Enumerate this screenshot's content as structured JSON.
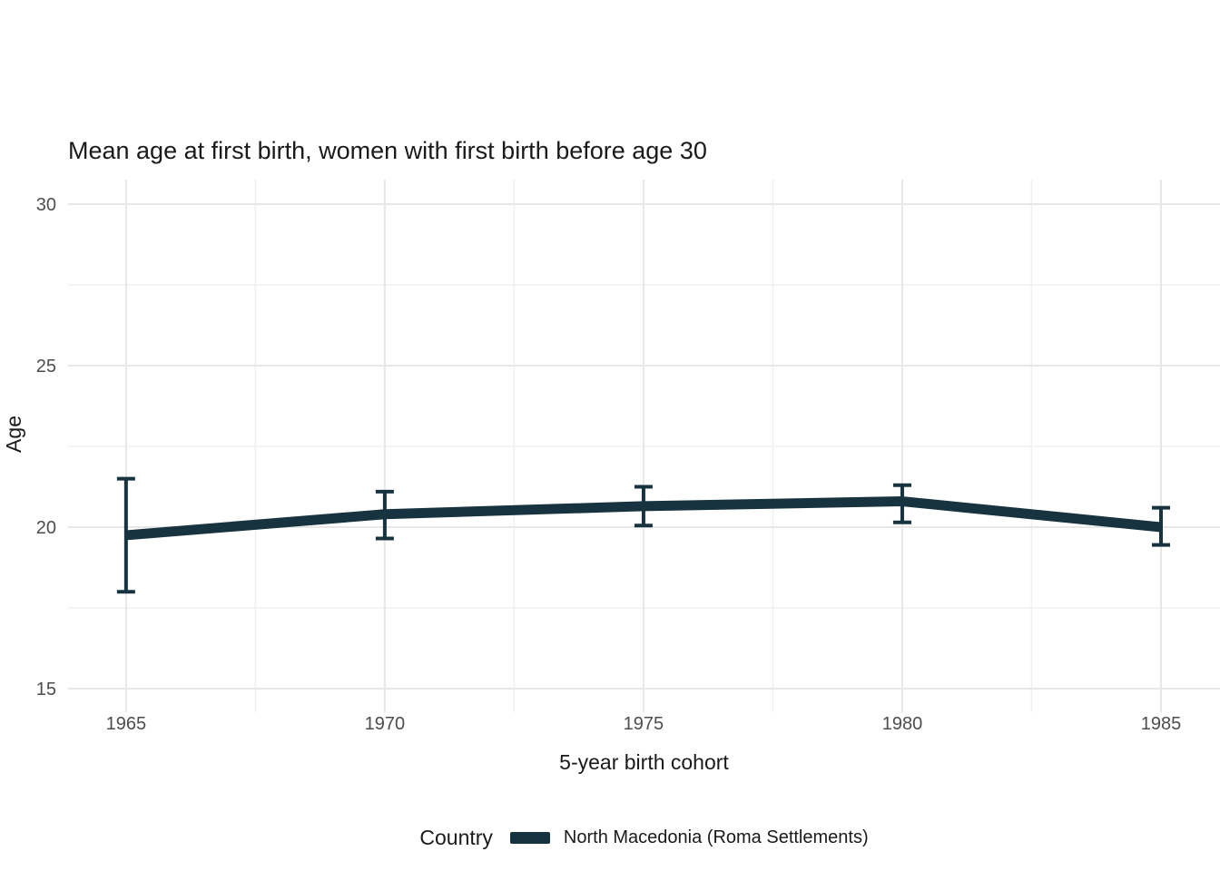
{
  "chart_data": {
    "type": "line",
    "title": "Mean age at first birth, women with first birth before age 30",
    "xlabel": "5-year birth cohort",
    "ylabel": "Age",
    "legend_title": "Country",
    "legend_position": "bottom",
    "grid": "major+minor",
    "x": [
      1965,
      1970,
      1975,
      1980,
      1985
    ],
    "xticks": [
      1965,
      1970,
      1975,
      1980,
      1985
    ],
    "xticks_minor": [
      1967.5,
      1972.5,
      1977.5,
      1982.5
    ],
    "yticks": [
      15,
      20,
      25,
      30
    ],
    "yticks_minor": [
      17.5,
      22.5,
      27.5
    ],
    "xlim": [
      1963.88,
      1986.14
    ],
    "ylim": [
      14.27,
      30.76
    ],
    "series": [
      {
        "name": "North Macedonia (Roma Settlements)",
        "values": [
          19.75,
          20.4,
          20.65,
          20.8,
          20.0
        ],
        "ci_low": [
          18.0,
          19.65,
          20.05,
          20.15,
          19.45
        ],
        "ci_high": [
          21.5,
          21.1,
          21.25,
          21.3,
          20.6
        ],
        "color": "#17333f"
      }
    ]
  },
  "colors": {
    "background": "#ffffff",
    "grid_major": "#e7e7e7",
    "grid_minor": "#f0f0f0",
    "tick_label": "#4d4d4d",
    "text": "#1a1a1a"
  }
}
